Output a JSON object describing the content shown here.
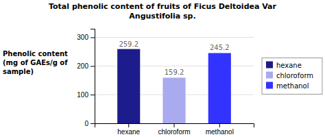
{
  "chart_data": {
    "type": "bar",
    "title": [
      "Total phenolic content of fruits of Ficus Deltoidea Var",
      "Angustifolia sp."
    ],
    "ylabel": [
      "Phenolic content",
      "(mg of GAEs/g of",
      "sample)"
    ],
    "categories": [
      "hexane",
      "chloroform",
      "methanol"
    ],
    "values": [
      259.2,
      159.2,
      245.2
    ],
    "colors": [
      "#1C1C8C",
      "#AAAAEE",
      "#3333FF"
    ],
    "ylim": [
      0,
      330
    ],
    "yticks": [
      0,
      100,
      200,
      300
    ],
    "grid": true,
    "data_labels": true,
    "legend": "right"
  }
}
